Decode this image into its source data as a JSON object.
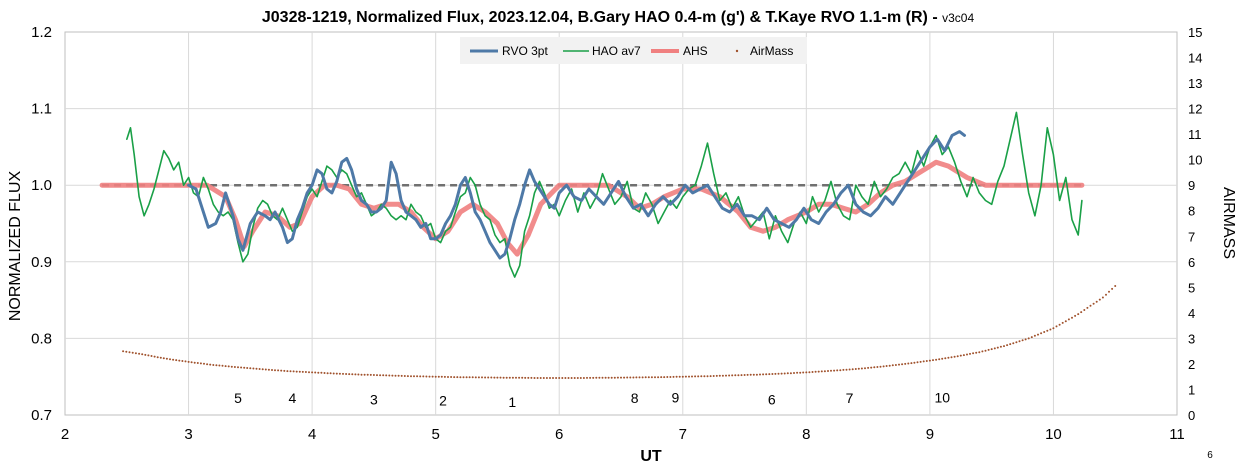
{
  "chart_data": {
    "type": "line",
    "title": "J0328-1219, Normalized Flux, 2023.12.04, B.Gary HAO 0.4-m (g') & T.Kaye RVO 1.1-m (R) - ",
    "title_suffix": "v3c04",
    "xlabel": "UT",
    "ylabel": "NORMALIZED FLUX",
    "y2label": "AIRMASS",
    "xlim": [
      2,
      11
    ],
    "ylim": [
      0.7,
      1.2
    ],
    "y2lim": [
      0,
      15
    ],
    "x_ticks": [
      "2",
      "3",
      "4",
      "5",
      "6",
      "7",
      "8",
      "9",
      "10",
      "11"
    ],
    "y_ticks": [
      "0.7",
      "0.8",
      "0.9",
      "1.0",
      "1.1",
      "1.2"
    ],
    "y2_ticks": [
      "0",
      "1",
      "2",
      "3",
      "4",
      "5",
      "6",
      "7",
      "8",
      "9",
      "10",
      "11",
      "12",
      "13",
      "14",
      "15"
    ],
    "grid": true,
    "legend_position": "top-center",
    "reference_line": {
      "y": 1.0,
      "style": "dashed",
      "color": "#707070"
    },
    "corner_label": "6",
    "series": [
      {
        "name": "RVO 3pt",
        "color": "#4E79A7",
        "axis": "left",
        "x": [
          3.0,
          3.06,
          3.1,
          3.16,
          3.22,
          3.26,
          3.3,
          3.36,
          3.4,
          3.44,
          3.5,
          3.56,
          3.62,
          3.66,
          3.7,
          3.76,
          3.8,
          3.84,
          3.88,
          3.92,
          3.96,
          4.0,
          4.04,
          4.08,
          4.12,
          4.16,
          4.2,
          4.24,
          4.28,
          4.32,
          4.36,
          4.4,
          4.44,
          4.48,
          4.52,
          4.56,
          4.6,
          4.64,
          4.68,
          4.72,
          4.76,
          4.8,
          4.84,
          4.88,
          4.92,
          4.96,
          5.0,
          5.04,
          5.08,
          5.12,
          5.16,
          5.2,
          5.24,
          5.28,
          5.32,
          5.36,
          5.4,
          5.44,
          5.48,
          5.52,
          5.56,
          5.6,
          5.64,
          5.68,
          5.72,
          5.76,
          5.8,
          5.84,
          5.88,
          5.92,
          5.96,
          6.0,
          6.06,
          6.12,
          6.18,
          6.24,
          6.3,
          6.36,
          6.42,
          6.48,
          6.54,
          6.6,
          6.66,
          6.72,
          6.78,
          6.84,
          6.9,
          6.96,
          7.02,
          7.08,
          7.14,
          7.2,
          7.26,
          7.32,
          7.38,
          7.44,
          7.5,
          7.56,
          7.62,
          7.68,
          7.74,
          7.8,
          7.86,
          7.92,
          7.98,
          8.04,
          8.1,
          8.16,
          8.22,
          8.28,
          8.34,
          8.4,
          8.46,
          8.52,
          8.58,
          8.64,
          8.7,
          8.76,
          8.82,
          8.88,
          8.94,
          9.0,
          9.06,
          9.12,
          9.18,
          9.24,
          9.28
        ],
        "y": [
          1.0,
          0.995,
          0.975,
          0.945,
          0.95,
          0.965,
          0.99,
          0.96,
          0.93,
          0.915,
          0.95,
          0.965,
          0.96,
          0.955,
          0.965,
          0.945,
          0.925,
          0.93,
          0.955,
          0.97,
          0.99,
          1.0,
          1.02,
          1.015,
          0.995,
          0.99,
          1.005,
          1.03,
          1.035,
          1.02,
          0.995,
          0.98,
          0.975,
          0.965,
          0.965,
          0.97,
          0.98,
          1.03,
          1.015,
          0.98,
          0.965,
          0.96,
          0.955,
          0.945,
          0.95,
          0.93,
          0.93,
          0.935,
          0.95,
          0.96,
          0.975,
          1.0,
          1.01,
          0.99,
          0.965,
          0.955,
          0.94,
          0.925,
          0.915,
          0.905,
          0.91,
          0.93,
          0.955,
          0.975,
          1.0,
          1.02,
          1.005,
          0.995,
          0.985,
          0.975,
          0.97,
          0.99,
          1.0,
          0.985,
          0.98,
          0.995,
          0.985,
          0.975,
          0.99,
          1.005,
          0.985,
          0.97,
          0.975,
          0.96,
          0.975,
          0.985,
          0.975,
          0.985,
          1.0,
          0.99,
          0.995,
          1.0,
          0.985,
          0.97,
          0.965,
          0.975,
          0.96,
          0.96,
          0.955,
          0.97,
          0.955,
          0.95,
          0.945,
          0.955,
          0.97,
          0.955,
          0.95,
          0.965,
          0.975,
          0.99,
          1.0,
          0.975,
          0.965,
          0.96,
          0.97,
          0.985,
          0.975,
          0.99,
          1.005,
          1.02,
          1.035,
          1.05,
          1.06,
          1.045,
          1.065,
          1.07,
          1.065
        ]
      },
      {
        "name": "HAO av7",
        "color": "#1AA047",
        "axis": "left",
        "x": [
          2.5,
          2.53,
          2.56,
          2.6,
          2.64,
          2.68,
          2.72,
          2.76,
          2.8,
          2.84,
          2.88,
          2.92,
          2.96,
          3.0,
          3.04,
          3.08,
          3.12,
          3.16,
          3.2,
          3.24,
          3.28,
          3.32,
          3.36,
          3.4,
          3.44,
          3.48,
          3.52,
          3.56,
          3.6,
          3.64,
          3.68,
          3.72,
          3.76,
          3.8,
          3.84,
          3.88,
          3.92,
          3.96,
          4.0,
          4.04,
          4.08,
          4.12,
          4.16,
          4.2,
          4.24,
          4.28,
          4.32,
          4.36,
          4.4,
          4.44,
          4.48,
          4.52,
          4.56,
          4.6,
          4.64,
          4.68,
          4.72,
          4.76,
          4.8,
          4.84,
          4.88,
          4.92,
          4.96,
          5.0,
          5.04,
          5.08,
          5.12,
          5.16,
          5.2,
          5.24,
          5.28,
          5.32,
          5.36,
          5.4,
          5.44,
          5.48,
          5.52,
          5.56,
          5.6,
          5.64,
          5.68,
          5.72,
          5.76,
          5.8,
          5.84,
          5.88,
          5.92,
          5.96,
          6.0,
          6.05,
          6.1,
          6.15,
          6.2,
          6.25,
          6.3,
          6.35,
          6.4,
          6.45,
          6.5,
          6.55,
          6.6,
          6.65,
          6.7,
          6.75,
          6.8,
          6.85,
          6.9,
          6.95,
          7.0,
          7.05,
          7.1,
          7.15,
          7.2,
          7.25,
          7.3,
          7.35,
          7.4,
          7.45,
          7.5,
          7.55,
          7.6,
          7.65,
          7.7,
          7.75,
          7.8,
          7.85,
          7.9,
          7.95,
          8.0,
          8.05,
          8.1,
          8.15,
          8.2,
          8.25,
          8.3,
          8.35,
          8.4,
          8.45,
          8.5,
          8.55,
          8.6,
          8.65,
          8.7,
          8.75,
          8.8,
          8.85,
          8.9,
          8.95,
          9.0,
          9.05,
          9.1,
          9.15,
          9.2,
          9.25,
          9.3,
          9.35,
          9.4,
          9.45,
          9.5,
          9.55,
          9.6,
          9.65,
          9.7,
          9.75,
          9.8,
          9.85,
          9.9,
          9.95,
          10.0,
          10.05,
          10.1,
          10.15,
          10.2,
          10.23
        ],
        "y": [
          1.06,
          1.075,
          1.04,
          0.985,
          0.96,
          0.975,
          0.995,
          1.02,
          1.045,
          1.035,
          1.02,
          1.03,
          1.0,
          1.01,
          0.99,
          0.985,
          1.01,
          0.995,
          0.975,
          0.965,
          0.96,
          0.965,
          0.955,
          0.925,
          0.9,
          0.91,
          0.945,
          0.97,
          0.98,
          0.975,
          0.96,
          0.955,
          0.97,
          0.955,
          0.94,
          0.945,
          0.965,
          0.985,
          0.995,
          0.985,
          1.005,
          1.025,
          1.02,
          1.01,
          1.02,
          1.015,
          1.0,
          0.985,
          0.99,
          0.975,
          0.96,
          0.965,
          0.975,
          0.97,
          0.96,
          0.955,
          0.96,
          0.955,
          0.975,
          0.965,
          0.96,
          0.945,
          0.95,
          0.93,
          0.925,
          0.94,
          0.945,
          0.965,
          0.985,
          0.99,
          1.01,
          1.0,
          0.975,
          0.96,
          0.955,
          0.935,
          0.925,
          0.93,
          0.895,
          0.88,
          0.895,
          0.94,
          0.96,
          0.99,
          1.005,
          0.99,
          0.97,
          0.975,
          0.96,
          0.98,
          0.995,
          0.965,
          0.99,
          0.97,
          0.985,
          1.015,
          0.995,
          0.975,
          0.985,
          1.005,
          0.97,
          0.965,
          0.99,
          0.975,
          0.95,
          0.965,
          0.98,
          0.97,
          0.985,
          0.995,
          1.0,
          1.025,
          1.055,
          1.015,
          0.98,
          0.99,
          0.97,
          0.985,
          0.96,
          0.945,
          0.955,
          0.965,
          0.93,
          0.96,
          0.94,
          0.925,
          0.95,
          0.965,
          0.95,
          0.985,
          0.965,
          0.98,
          1.005,
          0.975,
          0.96,
          0.955,
          1.0,
          0.985,
          0.975,
          1.005,
          0.985,
          0.995,
          1.01,
          1.015,
          1.03,
          1.015,
          1.045,
          1.025,
          1.05,
          1.065,
          1.04,
          1.05,
          1.03,
          1.005,
          0.985,
          1.01,
          0.99,
          0.98,
          0.975,
          1.005,
          1.025,
          1.06,
          1.095,
          1.04,
          0.99,
          0.96,
          1.0,
          1.075,
          1.04,
          0.98,
          1.01,
          0.955,
          0.935,
          0.98
        ]
      },
      {
        "name": "AHS",
        "color": "#F08080",
        "axis": "left",
        "x": [
          2.3,
          2.5,
          3.0,
          3.15,
          3.3,
          3.38,
          3.45,
          3.52,
          3.62,
          3.72,
          3.82,
          3.9,
          4.0,
          4.1,
          4.2,
          4.3,
          4.4,
          4.5,
          4.6,
          4.7,
          4.8,
          4.9,
          5.0,
          5.1,
          5.2,
          5.3,
          5.4,
          5.5,
          5.58,
          5.66,
          5.75,
          5.85,
          6.0,
          6.2,
          6.4,
          6.55,
          6.65,
          6.75,
          6.85,
          7.0,
          7.15,
          7.3,
          7.45,
          7.55,
          7.65,
          7.75,
          7.85,
          8.0,
          8.1,
          8.2,
          8.3,
          8.4,
          8.5,
          8.6,
          8.7,
          8.8,
          8.9,
          9.0,
          9.05,
          9.15,
          9.3,
          9.45,
          9.6,
          9.75,
          9.9,
          10.05,
          10.2,
          10.23
        ],
        "y": [
          1.0,
          1.0,
          1.0,
          1.0,
          0.985,
          0.955,
          0.92,
          0.94,
          0.965,
          0.96,
          0.945,
          0.95,
          0.985,
          1.0,
          1.0,
          0.995,
          0.975,
          0.97,
          0.975,
          0.975,
          0.965,
          0.945,
          0.93,
          0.94,
          0.965,
          0.975,
          0.965,
          0.95,
          0.925,
          0.91,
          0.935,
          0.975,
          1.0,
          1.0,
          1.0,
          0.985,
          0.97,
          0.975,
          0.985,
          0.995,
          0.995,
          0.985,
          0.965,
          0.945,
          0.94,
          0.945,
          0.955,
          0.965,
          0.975,
          0.975,
          0.97,
          0.965,
          0.975,
          0.99,
          1.0,
          1.005,
          1.015,
          1.025,
          1.03,
          1.025,
          1.01,
          1.0,
          1.0,
          1.0,
          1.0,
          1.0,
          1.0,
          1.0
        ]
      },
      {
        "name": "AirMass",
        "color": "#A0522D",
        "axis": "right",
        "style": "dotted",
        "x": [
          2.47,
          2.6,
          2.8,
          3.0,
          3.2,
          3.4,
          3.6,
          3.8,
          4.0,
          4.2,
          4.4,
          4.6,
          4.8,
          5.0,
          5.2,
          5.4,
          5.6,
          5.8,
          6.0,
          6.2,
          6.4,
          6.6,
          6.8,
          7.0,
          7.2,
          7.4,
          7.6,
          7.8,
          8.0,
          8.2,
          8.4,
          8.6,
          8.8,
          9.0,
          9.2,
          9.4,
          9.6,
          9.8,
          10.0,
          10.2,
          10.4,
          10.5
        ],
        "y": [
          2.5,
          2.4,
          2.22,
          2.08,
          1.96,
          1.87,
          1.79,
          1.72,
          1.67,
          1.62,
          1.58,
          1.55,
          1.52,
          1.5,
          1.48,
          1.47,
          1.46,
          1.45,
          1.45,
          1.45,
          1.46,
          1.47,
          1.48,
          1.5,
          1.52,
          1.55,
          1.58,
          1.62,
          1.67,
          1.73,
          1.8,
          1.89,
          2.0,
          2.13,
          2.28,
          2.46,
          2.7,
          3.0,
          3.4,
          3.95,
          4.6,
          5.05
        ]
      }
    ],
    "annotations": [
      {
        "text": "5",
        "x": 3.4,
        "y": 0.722
      },
      {
        "text": "4",
        "x": 3.84,
        "y": 0.722
      },
      {
        "text": "3",
        "x": 4.5,
        "y": 0.72
      },
      {
        "text": "2",
        "x": 5.06,
        "y": 0.719
      },
      {
        "text": "1",
        "x": 5.62,
        "y": 0.717
      },
      {
        "text": "8",
        "x": 6.61,
        "y": 0.722
      },
      {
        "text": "9",
        "x": 6.94,
        "y": 0.723
      },
      {
        "text": "6",
        "x": 7.72,
        "y": 0.72
      },
      {
        "text": "7",
        "x": 8.35,
        "y": 0.722
      },
      {
        "text": "10",
        "x": 9.1,
        "y": 0.723
      }
    ]
  }
}
